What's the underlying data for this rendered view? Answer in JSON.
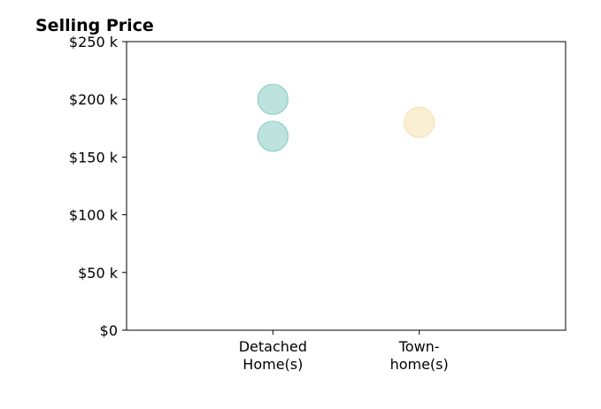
{
  "chart_data": {
    "type": "scatter",
    "title": "Selling Price",
    "xlabel": "",
    "ylabel": "",
    "categories": [
      [
        "Detached",
        "Home(s)"
      ],
      [
        "Town-",
        "home(s)"
      ]
    ],
    "ylim": [
      0,
      250
    ],
    "y_ticks": [
      0,
      50,
      100,
      150,
      200,
      250
    ],
    "y_tick_labels": [
      "$0",
      "$50 k",
      "$100 k",
      "$150 k",
      "$200 k",
      "$250 k"
    ],
    "grid": false,
    "points": [
      {
        "category": 0,
        "y": 200,
        "color": "#8ecfc7"
      },
      {
        "category": 0,
        "y": 168,
        "color": "#8ecfc7"
      },
      {
        "category": 1,
        "y": 180,
        "color": "#f6e3b4"
      }
    ]
  }
}
